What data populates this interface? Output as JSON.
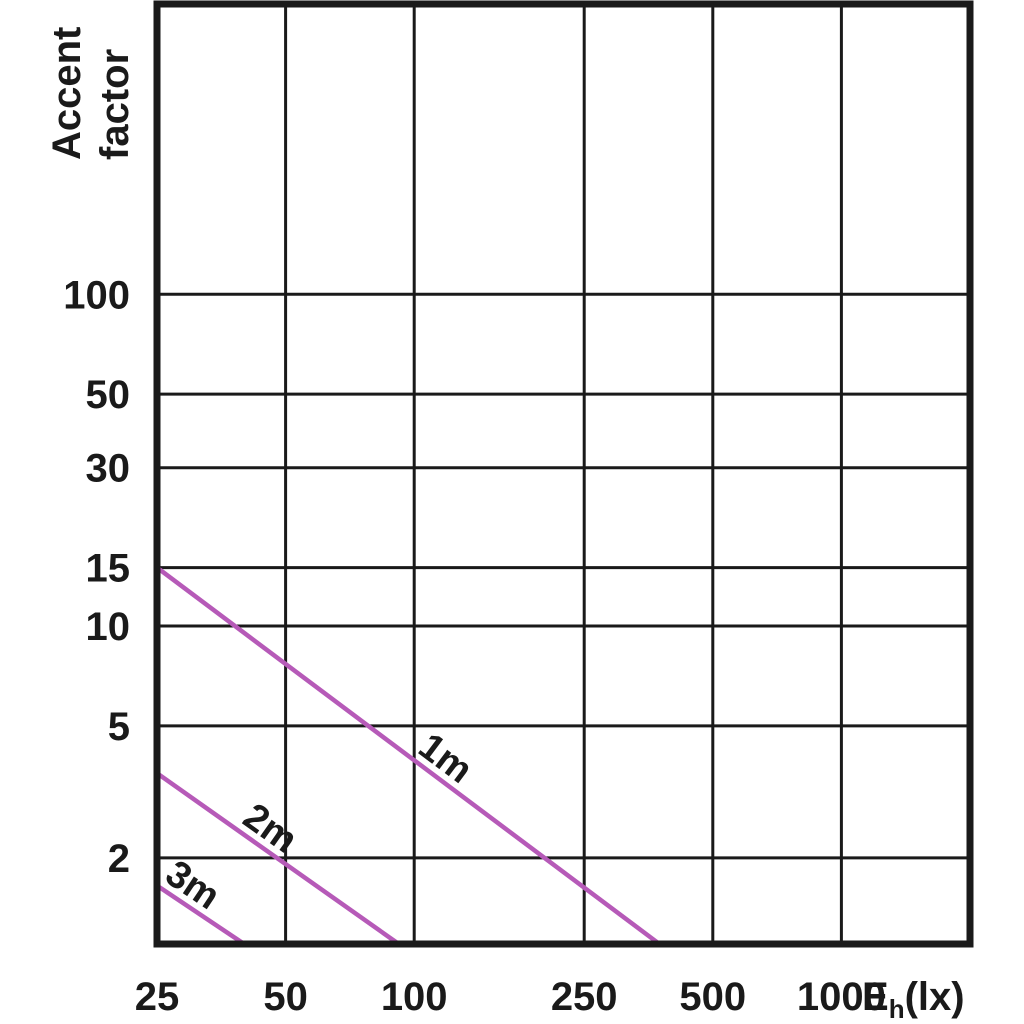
{
  "chart_data": {
    "type": "line",
    "title": "",
    "ylabel": [
      "Accent",
      "factor"
    ],
    "xlabel_main": "E",
    "xlabel_sub": "h",
    "xlabel_unit": "(lx)",
    "x_ticks": [
      25,
      50,
      100,
      250,
      500,
      1000
    ],
    "y_ticks": [
      2,
      5,
      10,
      15,
      30,
      50,
      100
    ],
    "x_scale": "log",
    "y_scale": "log",
    "xlim": [
      25,
      2000
    ],
    "ylim": [
      1.1,
      750
    ],
    "grid": true,
    "line_color": "#b65ab8",
    "series": [
      {
        "name": "1m",
        "points": [
          [
            25,
            15
          ],
          [
            375,
            1.1
          ]
        ]
      },
      {
        "name": "2m",
        "points": [
          [
            25,
            3.6
          ],
          [
            92,
            1.1
          ]
        ]
      },
      {
        "name": "3m",
        "points": [
          [
            25,
            1.65
          ],
          [
            40,
            1.1
          ]
        ]
      }
    ]
  }
}
